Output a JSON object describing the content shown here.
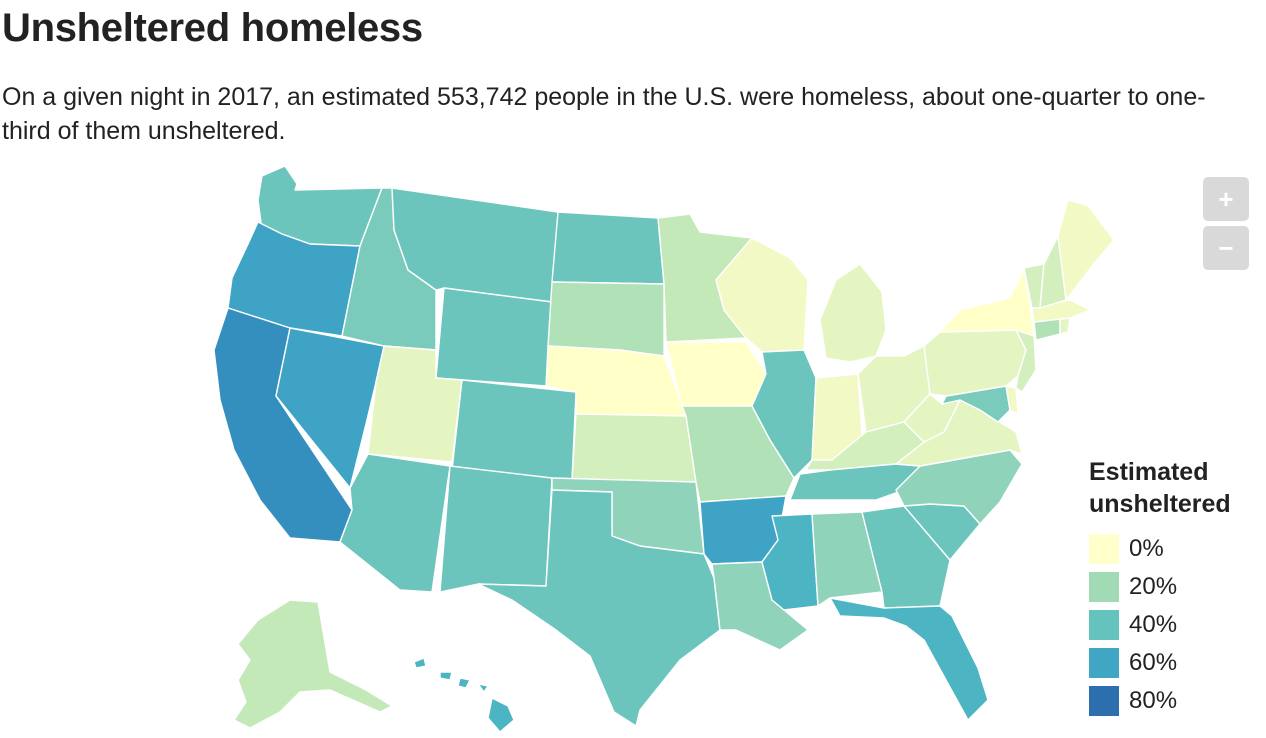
{
  "title": "Unsheltered homeless",
  "subtitle": "On a given night in 2017, an estimated 553,742 people in the U.S. were homeless, about one-quarter to one-third of them unsheltered.",
  "zoom": {
    "in_label": "+",
    "out_label": "−"
  },
  "legend": {
    "title_line1": "Estimated",
    "title_line2": "unsheltered",
    "items": [
      {
        "label": "0%",
        "color": "#ffffcc"
      },
      {
        "label": "20%",
        "color": "#a1dab4"
      },
      {
        "label": "40%",
        "color": "#65c3bd"
      },
      {
        "label": "60%",
        "color": "#41a6c4"
      },
      {
        "label": "80%",
        "color": "#2c6eae"
      }
    ]
  },
  "map_colors": {
    "c0": "#ffffc7",
    "c5": "#f2f9c4",
    "c10": "#e4f5c2",
    "c15": "#d3efbd",
    "c20": "#c4e9b9",
    "c25": "#b1e1b6",
    "c30": "#8fd3bb",
    "c35": "#7bcbbc",
    "c40": "#6bc5bd",
    "c50": "#4db4c3",
    "c55": "#3fa3c5",
    "c70": "#358fbe"
  }
}
